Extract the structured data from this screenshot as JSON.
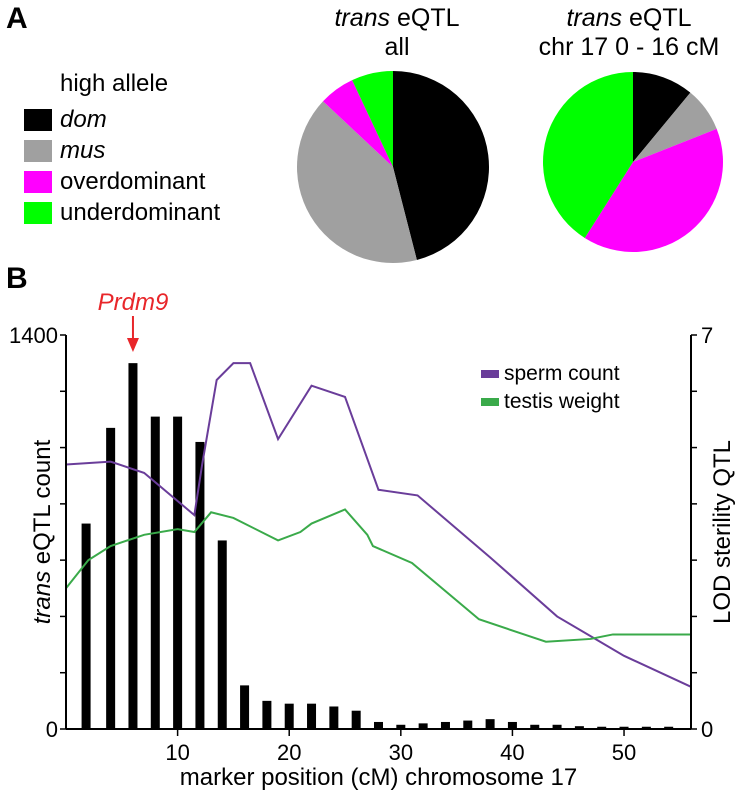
{
  "panel_a": {
    "letter": "A",
    "legend_title": "high allele",
    "legend": [
      {
        "label": "dom",
        "color": "#000000",
        "italic": true
      },
      {
        "label": "mus",
        "color": "#a0a0a0",
        "italic": true
      },
      {
        "label": "overdominant",
        "color": "#ff00ff",
        "italic": false
      },
      {
        "label": "underdominant",
        "color": "#00ff00",
        "italic": false
      }
    ]
  },
  "panel_b": {
    "letter": "B",
    "annotation": {
      "label": "Prdm9",
      "color": "#e8262a",
      "x": 6
    }
  },
  "chart_data": [
    {
      "type": "pie",
      "title_italic": "trans",
      "title_rest": "eQTL",
      "subtitle": "all",
      "labels": [
        "dom",
        "mus",
        "overdominant",
        "underdominant"
      ],
      "values": [
        46,
        41,
        6,
        7
      ],
      "colors": [
        "#000000",
        "#a0a0a0",
        "#ff00ff",
        "#00ff00"
      ]
    },
    {
      "type": "pie",
      "title_italic": "trans",
      "title_rest": "eQTL",
      "subtitle": "chr 17 0 - 16 cM",
      "labels": [
        "dom",
        "mus",
        "overdominant",
        "underdominant"
      ],
      "values": [
        11,
        8,
        40,
        41
      ],
      "colors": [
        "#000000",
        "#a0a0a0",
        "#ff00ff",
        "#00ff00"
      ]
    },
    {
      "type": "bar+line",
      "xlabel": "marker position (cM) chromosome 17",
      "ylabel_italic": "trans",
      "ylabel_rest": "eQTL count",
      "y2label": "LOD sterility QTL",
      "xlim": [
        0,
        56
      ],
      "x_ticks": [
        10,
        20,
        30,
        40,
        50
      ],
      "ylim": [
        0,
        1400
      ],
      "y_ticks_labeled": [
        0,
        1400
      ],
      "y_ticks": [
        0,
        200,
        400,
        600,
        800,
        1000,
        1200,
        1400
      ],
      "y2lim": [
        0,
        7
      ],
      "y2_ticks_labeled": [
        0,
        7
      ],
      "y2_ticks": [
        0,
        1,
        2,
        3,
        4,
        5,
        6,
        7
      ],
      "bars": {
        "color": "#000000",
        "x": [
          1.8,
          4.0,
          6.0,
          8.0,
          10.0,
          12.0,
          14.0,
          16.0,
          18.0,
          20.0,
          22.0,
          24.0,
          26.0,
          28.0,
          30.0,
          32.0,
          34.0,
          36.0,
          38.0,
          40.0,
          42.0,
          44.0,
          46.0,
          48.0,
          50.0,
          52.0,
          54.0
        ],
        "values": [
          730,
          1070,
          1300,
          1110,
          1110,
          1020,
          670,
          155,
          100,
          90,
          90,
          80,
          65,
          25,
          15,
          20,
          25,
          30,
          35,
          25,
          15,
          15,
          10,
          8,
          8,
          8,
          8
        ]
      },
      "series": [
        {
          "name": "sperm count",
          "color": "#6a3d9a",
          "x": [
            0,
            4,
            7,
            11.5,
            12.2,
            13.5,
            15,
            16.5,
            19,
            22,
            25,
            28,
            31.5,
            38,
            44,
            50,
            56
          ],
          "y": [
            4.7,
            4.75,
            4.55,
            3.8,
            4.7,
            6.2,
            6.5,
            6.5,
            5.15,
            6.1,
            5.9,
            4.25,
            4.15,
            3.05,
            2.0,
            1.3,
            0.75
          ]
        },
        {
          "name": "testis weight",
          "color": "#3aaa4a",
          "x": [
            0,
            2,
            4,
            7,
            10,
            11.5,
            13,
            15,
            19,
            21,
            22,
            25,
            27,
            27.5,
            31,
            37,
            43,
            47,
            49,
            56
          ],
          "y": [
            2.5,
            3.0,
            3.25,
            3.45,
            3.55,
            3.5,
            3.85,
            3.75,
            3.35,
            3.5,
            3.65,
            3.9,
            3.45,
            3.25,
            2.95,
            1.95,
            1.55,
            1.6,
            1.68,
            1.68
          ]
        }
      ]
    }
  ]
}
